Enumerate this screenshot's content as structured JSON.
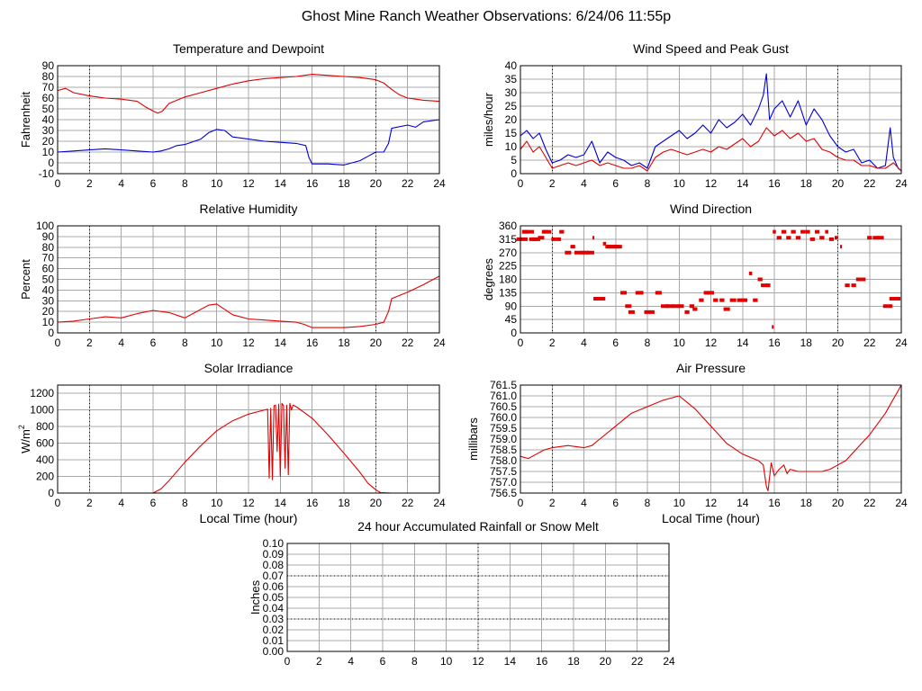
{
  "page": {
    "title": "Ghost Mine Ranch Weather Observations: 6/24/06 11:55p"
  },
  "colors": {
    "red": "#e00000",
    "blue": "#0000d0",
    "grid": "#a8a8a8",
    "axis": "#000000",
    "background": "#ffffff"
  },
  "chart_data": [
    {
      "id": "temp",
      "type": "line",
      "title": "Temperature and Dewpoint",
      "xlabel": "",
      "ylabel": "Fahrenheit",
      "xlim": [
        0,
        24
      ],
      "ylim": [
        -10,
        90
      ],
      "xticks": [
        0,
        2,
        4,
        6,
        8,
        10,
        12,
        14,
        16,
        18,
        20,
        22,
        24
      ],
      "yticks": [
        "-10",
        "0",
        "10",
        "20",
        "30",
        "40",
        "50",
        "60",
        "70",
        "80",
        "90"
      ],
      "marker_lines": [
        2,
        20
      ],
      "series": [
        {
          "color_key": "red",
          "x": [
            0,
            0.5,
            1,
            2,
            3,
            4,
            5,
            5.5,
            6,
            6.3,
            6.6,
            7,
            8,
            9,
            10,
            11,
            12,
            13,
            14,
            15,
            16,
            17,
            18,
            19,
            20,
            20.5,
            21,
            21.5,
            22,
            22.5,
            23,
            24
          ],
          "y": [
            67,
            69,
            65,
            62,
            60,
            59,
            57,
            52,
            48,
            46,
            48,
            55,
            61,
            65,
            69,
            73,
            76,
            78,
            79,
            80,
            82,
            81,
            80,
            79,
            77,
            74,
            68,
            63,
            60,
            59,
            58,
            57
          ]
        },
        {
          "color_key": "blue",
          "x": [
            0,
            1,
            2,
            3,
            4,
            5,
            6,
            6.5,
            7,
            7.5,
            8,
            9,
            9.5,
            10,
            10.5,
            11,
            12,
            13,
            14,
            15,
            15.6,
            15.8,
            16,
            17,
            18,
            19,
            19.5,
            20,
            20.5,
            20.8,
            21,
            22,
            22.5,
            23,
            24
          ],
          "y": [
            10,
            11,
            12,
            13,
            12,
            11,
            10,
            11,
            13,
            16,
            17,
            22,
            28,
            31,
            30,
            24,
            22,
            20,
            19,
            18,
            16,
            5,
            -1,
            -1,
            -2,
            2,
            6,
            10,
            10,
            18,
            32,
            35,
            33,
            38,
            40
          ]
        }
      ]
    },
    {
      "id": "wind",
      "type": "line",
      "title": "Wind Speed and Peak Gust",
      "xlabel": "",
      "ylabel": "miles/hour",
      "xlim": [
        0,
        24
      ],
      "ylim": [
        0,
        40
      ],
      "xticks": [
        0,
        2,
        4,
        6,
        8,
        10,
        12,
        14,
        16,
        18,
        20,
        22,
        24
      ],
      "yticks": [
        "0",
        "5",
        "10",
        "15",
        "20",
        "25",
        "30",
        "35",
        "40"
      ],
      "marker_lines": [
        2,
        20
      ],
      "series": [
        {
          "color_key": "blue",
          "x": [
            0,
            0.4,
            0.8,
            1.2,
            1.6,
            2,
            2.5,
            3,
            3.5,
            4,
            4.5,
            5,
            5.5,
            6,
            6.5,
            7,
            7.5,
            8,
            8.5,
            9,
            9.5,
            10,
            10.5,
            11,
            11.5,
            12,
            12.5,
            13,
            13.5,
            14,
            14.5,
            15,
            15.3,
            15.5,
            15.7,
            16,
            16.5,
            17,
            17.5,
            18,
            18.5,
            19,
            19.5,
            20,
            20.5,
            21,
            21.5,
            22,
            22.5,
            23,
            23.3,
            23.5,
            23.8,
            24
          ],
          "y": [
            14,
            16,
            13,
            15,
            9,
            4,
            5,
            7,
            6,
            7,
            12,
            4,
            8,
            6,
            5,
            3,
            4,
            2,
            10,
            12,
            14,
            16,
            13,
            15,
            18,
            15,
            20,
            17,
            19,
            22,
            18,
            24,
            29,
            37,
            20,
            24,
            27,
            21,
            27,
            18,
            24,
            20,
            14,
            10,
            8,
            9,
            4,
            5,
            2,
            3,
            17,
            6,
            2,
            1
          ]
        },
        {
          "color_key": "red",
          "x": [
            0,
            0.4,
            0.8,
            1.2,
            1.6,
            2,
            2.5,
            3,
            3.5,
            4,
            4.5,
            5,
            5.5,
            6,
            6.5,
            7,
            7.5,
            8,
            8.5,
            9,
            9.5,
            10,
            10.5,
            11,
            11.5,
            12,
            12.5,
            13,
            13.5,
            14,
            14.5,
            15,
            15.5,
            16,
            16.5,
            17,
            17.5,
            18,
            18.5,
            19,
            19.5,
            20,
            20.5,
            21,
            21.5,
            22,
            22.5,
            23,
            23.5,
            24
          ],
          "y": [
            9,
            12,
            8,
            10,
            6,
            2,
            3,
            4,
            3,
            4,
            5,
            3,
            4,
            3,
            2,
            2,
            3,
            1,
            6,
            8,
            9,
            8,
            7,
            8,
            9,
            8,
            10,
            9,
            11,
            13,
            10,
            12,
            17,
            14,
            16,
            13,
            15,
            12,
            13,
            9,
            8,
            6,
            5,
            5,
            3,
            3,
            2,
            2,
            4,
            1
          ]
        }
      ]
    },
    {
      "id": "humidity",
      "type": "line",
      "title": "Relative Humidity",
      "xlabel": "",
      "ylabel": "Percent",
      "xlim": [
        0,
        24
      ],
      "ylim": [
        0,
        100
      ],
      "xticks": [
        0,
        2,
        4,
        6,
        8,
        10,
        12,
        14,
        16,
        18,
        20,
        22,
        24
      ],
      "yticks": [
        "0",
        "10",
        "20",
        "30",
        "40",
        "50",
        "60",
        "70",
        "80",
        "90",
        "100"
      ],
      "marker_lines": [
        2,
        20
      ],
      "series": [
        {
          "color_key": "red",
          "x": [
            0,
            1,
            2,
            3,
            4,
            5,
            6,
            7,
            8,
            8.5,
            9,
            9.5,
            10,
            10.5,
            11,
            12,
            13,
            14,
            15,
            15.5,
            16,
            17,
            18,
            19,
            20,
            20.5,
            20.8,
            21,
            22,
            23,
            24
          ],
          "y": [
            10,
            11,
            13,
            15,
            14,
            18,
            21,
            19,
            14,
            18,
            22,
            26,
            27,
            22,
            17,
            13,
            12,
            11,
            10,
            8,
            5,
            5,
            5,
            6,
            8,
            10,
            20,
            32,
            38,
            45,
            53
          ]
        }
      ]
    },
    {
      "id": "winddir",
      "type": "scatter",
      "title": "Wind Direction",
      "xlabel": "",
      "ylabel": "degrees",
      "xlim": [
        0,
        24
      ],
      "ylim": [
        0,
        360
      ],
      "xticks": [
        0,
        2,
        4,
        6,
        8,
        10,
        12,
        14,
        16,
        18,
        20,
        22,
        24
      ],
      "yticks": [
        "0",
        "45",
        "90",
        "135",
        "180",
        "225",
        "270",
        "315",
        "360"
      ],
      "marker_lines": [
        2,
        20
      ],
      "series": [
        {
          "color_key": "red",
          "x": [
            0.1,
            0.3,
            0.5,
            0.8,
            1.0,
            1.3,
            1.5,
            1.7,
            2.1,
            2.4,
            2.6,
            3.0,
            3.3,
            3.6,
            3.9,
            4.1,
            4.4,
            4.6,
            4.7,
            4.9,
            5.1,
            5.3,
            5.5,
            5.6,
            5.8,
            6.0,
            6.2,
            6.5,
            6.8,
            7.0,
            7.5,
            8.0,
            8.3,
            8.7,
            9.1,
            9.4,
            9.8,
            10.1,
            10.5,
            10.8,
            11.0,
            11.4,
            11.7,
            12.0,
            12.3,
            12.7,
            13.0,
            13.4,
            13.8,
            14.1,
            14.5,
            14.8,
            15.1,
            15.4,
            15.6,
            15.9,
            16.0,
            16.3,
            16.6,
            16.9,
            17.2,
            17.5,
            17.8,
            18.1,
            18.4,
            18.7,
            19.0,
            19.3,
            19.6,
            19.9,
            20.2,
            20.6,
            21.0,
            21.3,
            21.6,
            22.0,
            22.4,
            22.7,
            23.0,
            23.3,
            23.6
          ],
          "y": [
            315,
            340,
            340,
            315,
            315,
            320,
            340,
            340,
            315,
            315,
            340,
            270,
            290,
            270,
            270,
            270,
            270,
            320,
            115,
            115,
            115,
            300,
            290,
            290,
            290,
            290,
            290,
            135,
            90,
            70,
            135,
            70,
            70,
            135,
            90,
            90,
            90,
            90,
            70,
            90,
            80,
            110,
            135,
            135,
            110,
            110,
            80,
            110,
            110,
            110,
            200,
            110,
            180,
            160,
            160,
            20,
            340,
            320,
            340,
            320,
            340,
            320,
            340,
            340,
            315,
            340,
            320,
            340,
            315,
            320,
            290,
            160,
            160,
            180,
            180,
            320,
            320,
            320,
            90,
            90,
            115
          ],
          "width": [
            0.7,
            0.4,
            0.7,
            0.5,
            0.5,
            0.4,
            0.3,
            0.5,
            0.3,
            0.3,
            0.3,
            0.4,
            0.3,
            0.4,
            0.3,
            0.4,
            0.5,
            0.1,
            0.2,
            0.4,
            0.5,
            0.2,
            0.3,
            0.3,
            0.5,
            0.5,
            0.4,
            0.4,
            0.4,
            0.4,
            0.5,
            0.4,
            0.3,
            0.4,
            0.5,
            0.5,
            0.5,
            0.4,
            0.3,
            0.3,
            0.3,
            0.3,
            0.3,
            0.4,
            0.3,
            0.3,
            0.4,
            0.4,
            0.3,
            0.4,
            0.2,
            0.3,
            0.3,
            0.5,
            0.3,
            0.1,
            0.2,
            0.3,
            0.3,
            0.3,
            0.3,
            0.3,
            0.3,
            0.3,
            0.3,
            0.3,
            0.3,
            0.2,
            0.3,
            0.2,
            0.1,
            0.3,
            0.3,
            0.3,
            0.3,
            0.3,
            0.4,
            0.4,
            0.3,
            0.3,
            0.7
          ]
        }
      ]
    },
    {
      "id": "solar",
      "type": "line",
      "title": "Solar Irradiance",
      "xlabel": "Local Time (hour)",
      "ylabel": "W/m",
      "ylabel_sup": "2",
      "xlim": [
        0,
        24
      ],
      "ylim": [
        0,
        1300
      ],
      "xticks": [
        0,
        2,
        4,
        6,
        8,
        10,
        12,
        14,
        16,
        18,
        20,
        22,
        24
      ],
      "yticks": [
        "0",
        "200",
        "400",
        "600",
        "800",
        "1000",
        "1200"
      ],
      "marker_lines": [
        2,
        20
      ],
      "series": [
        {
          "color_key": "red",
          "x": [
            0,
            6,
            6.5,
            7,
            8,
            9,
            10,
            11,
            12,
            12.8,
            13.2,
            13.3,
            13.4,
            13.5,
            13.6,
            13.7,
            13.8,
            13.9,
            14.0,
            14.1,
            14.2,
            14.3,
            14.4,
            14.5,
            14.6,
            14.7,
            14.8,
            15,
            16,
            17,
            18,
            19,
            19.5,
            20,
            20.3,
            21,
            24
          ],
          "y": [
            0,
            0,
            50,
            150,
            370,
            570,
            750,
            870,
            950,
            990,
            1010,
            180,
            1020,
            160,
            1050,
            1060,
            500,
            1070,
            200,
            1080,
            1050,
            300,
            1060,
            220,
            1080,
            1000,
            1060,
            1040,
            900,
            700,
            480,
            250,
            120,
            40,
            5,
            0,
            0
          ]
        }
      ]
    },
    {
      "id": "pressure",
      "type": "line",
      "title": "Air Pressure",
      "xlabel": "Local Time (hour)",
      "ylabel": "millibars",
      "xlim": [
        0,
        24
      ],
      "ylim": [
        756.5,
        761.5
      ],
      "xticks": [
        0,
        2,
        4,
        6,
        8,
        10,
        12,
        14,
        16,
        18,
        20,
        22,
        24
      ],
      "yticks": [
        "756.5",
        "757.0",
        "757.5",
        "758.0",
        "758.5",
        "759.0",
        "759.5",
        "760.0",
        "760.5",
        "761.0",
        "761.5"
      ],
      "marker_lines": [
        2,
        20
      ],
      "series": [
        {
          "color_key": "red",
          "x": [
            0,
            0.5,
            1,
            1.5,
            2,
            3,
            4,
            4.5,
            5,
            6,
            7,
            8,
            9,
            9.5,
            10,
            10.5,
            11,
            12,
            13,
            14,
            15,
            15.3,
            15.5,
            15.6,
            15.8,
            16,
            16.3,
            16.6,
            16.8,
            17,
            17.5,
            18,
            19,
            19.5,
            20,
            20.5,
            21,
            22,
            23,
            24
          ],
          "y": [
            758.2,
            758.1,
            758.3,
            758.5,
            758.6,
            758.7,
            758.6,
            758.7,
            759.0,
            759.6,
            760.2,
            760.5,
            760.8,
            760.9,
            761.0,
            760.7,
            760.4,
            759.6,
            758.8,
            758.3,
            758.0,
            757.8,
            756.8,
            756.6,
            757.9,
            757.3,
            757.6,
            757.8,
            757.4,
            757.6,
            757.5,
            757.5,
            757.5,
            757.6,
            757.8,
            758.0,
            758.4,
            759.2,
            760.2,
            761.5
          ]
        }
      ]
    },
    {
      "id": "rain",
      "type": "line",
      "title": "24 hour Accumulated Rainfall or Snow Melt",
      "xlabel": "",
      "ylabel": "Inches",
      "xlim": [
        0,
        24
      ],
      "ylim": [
        0,
        0.1
      ],
      "xticks": [
        0,
        2,
        4,
        6,
        8,
        10,
        12,
        14,
        16,
        18,
        20,
        22,
        24
      ],
      "yticks": [
        "0.00",
        "0.01",
        "0.02",
        "0.03",
        "0.04",
        "0.05",
        "0.06",
        "0.07",
        "0.08",
        "0.09",
        "0.10"
      ],
      "marker_lines": [
        12
      ],
      "marker_hlines": [
        0.03,
        0.07
      ],
      "series": [
        {
          "color_key": "red",
          "x": [
            0,
            24
          ],
          "y": [
            0,
            0
          ]
        }
      ]
    }
  ]
}
